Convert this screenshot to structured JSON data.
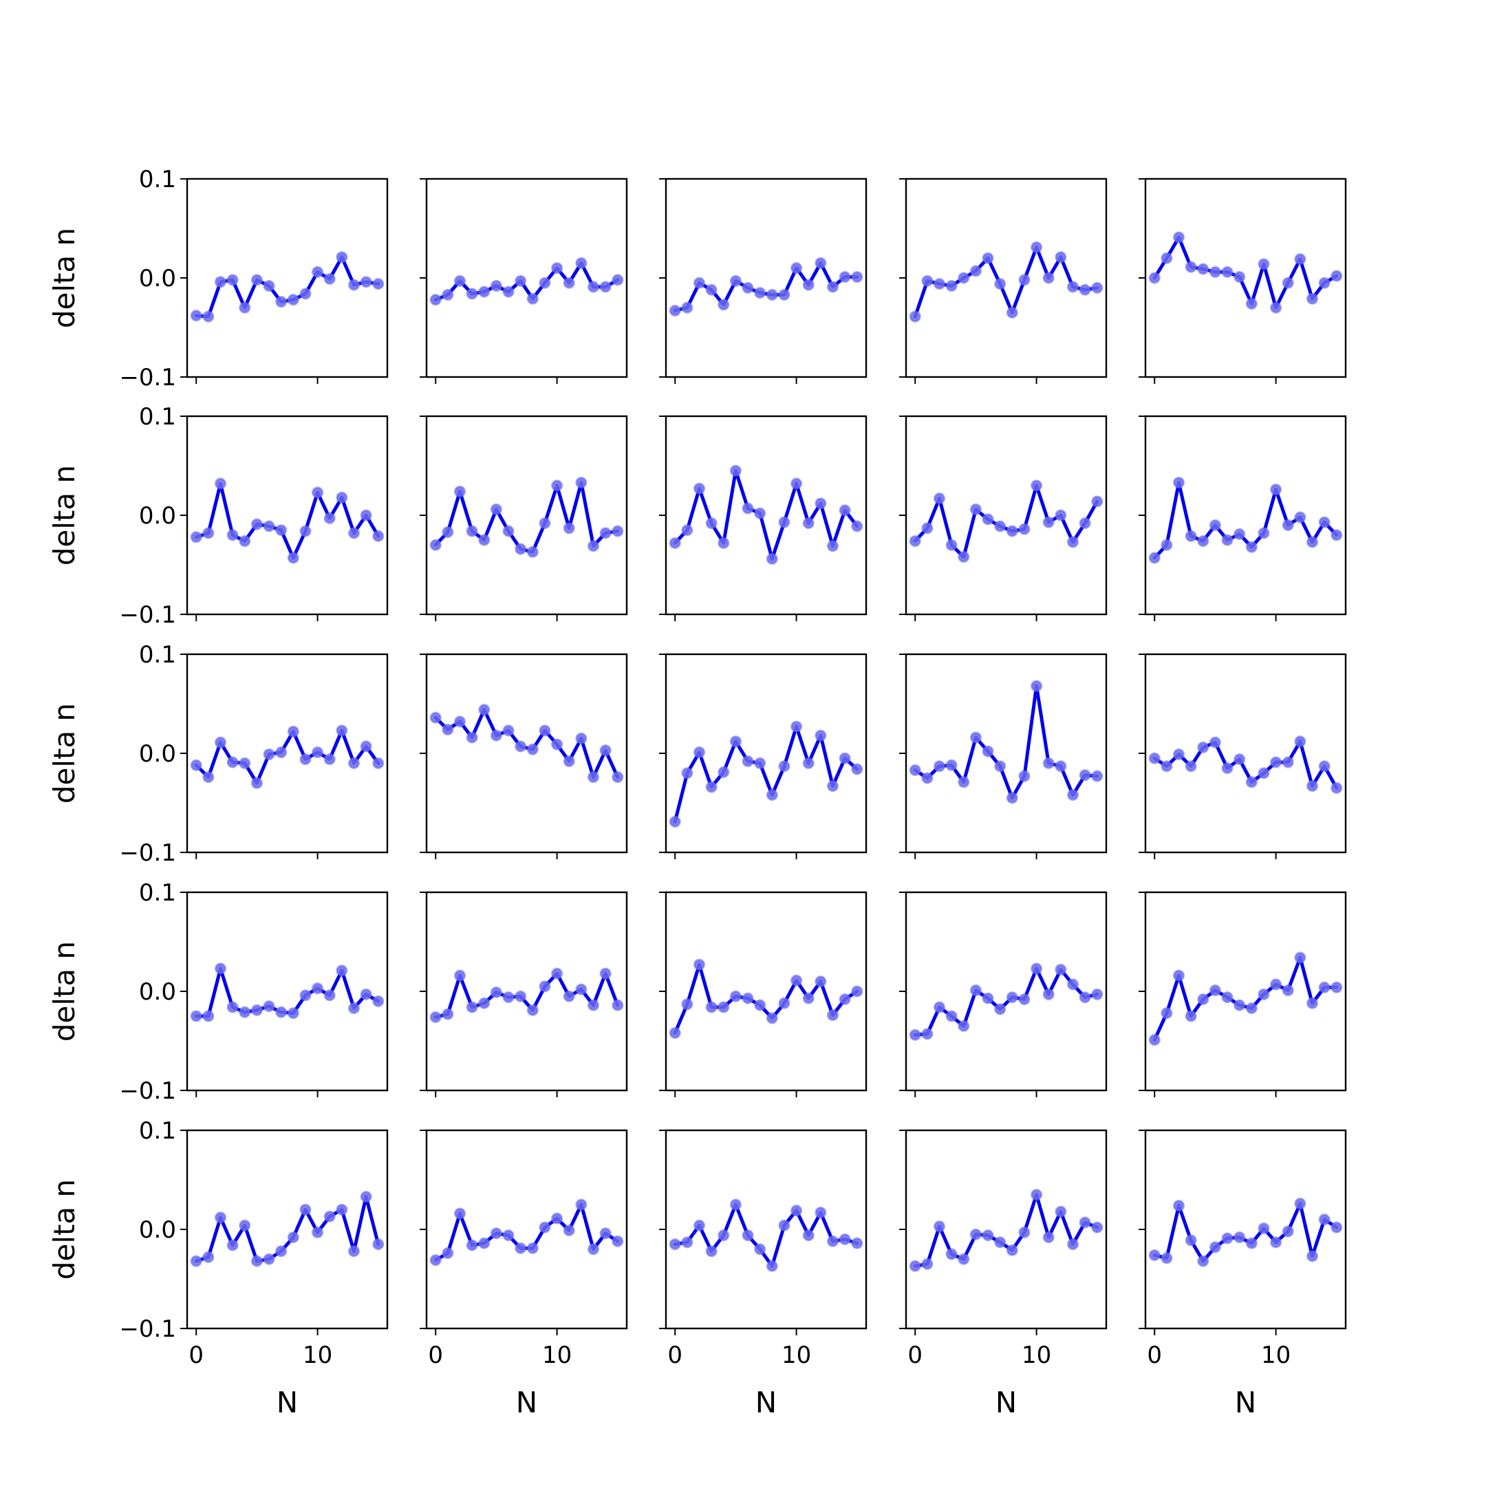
{
  "chart_data": {
    "type": "line",
    "layout": "5x5 small multiples",
    "xlabel": "N",
    "ylabel": "delta n",
    "ylim": [
      -0.1,
      0.1
    ],
    "xlim": [
      -0.75,
      15.75
    ],
    "yticks": [
      -0.1,
      0.0,
      0.1
    ],
    "ytick_labels": [
      "−0.1",
      "0.0",
      "0.1"
    ],
    "xticks": [
      0,
      10
    ],
    "xtick_labels": [
      "0",
      "10"
    ],
    "grid": false,
    "legend": "none",
    "line_color": "#0000ee",
    "marker_color": "#6a6af0",
    "x": [
      0,
      1,
      2,
      3,
      4,
      5,
      6,
      7,
      8,
      9,
      10,
      11,
      12,
      13,
      14,
      15
    ],
    "panels": [
      {
        "row": 1,
        "col": 1,
        "y": [
          -0.038,
          -0.039,
          -0.004,
          -0.002,
          -0.03,
          -0.002,
          -0.008,
          -0.024,
          -0.022,
          -0.016,
          0.006,
          -0.001,
          0.021,
          -0.007,
          -0.004,
          -0.006
        ]
      },
      {
        "row": 1,
        "col": 2,
        "y": [
          -0.022,
          -0.017,
          -0.003,
          -0.016,
          -0.014,
          -0.008,
          -0.014,
          -0.003,
          -0.021,
          -0.005,
          0.01,
          -0.005,
          0.015,
          -0.009,
          -0.009,
          -0.002
        ]
      },
      {
        "row": 1,
        "col": 3,
        "y": [
          -0.033,
          -0.03,
          -0.005,
          -0.012,
          -0.027,
          -0.003,
          -0.01,
          -0.015,
          -0.017,
          -0.017,
          0.01,
          -0.007,
          0.015,
          -0.009,
          0.001,
          0.001
        ]
      },
      {
        "row": 1,
        "col": 4,
        "y": [
          -0.039,
          -0.003,
          -0.006,
          -0.008,
          0.0,
          0.007,
          0.02,
          -0.006,
          -0.035,
          -0.002,
          0.031,
          0.0,
          0.021,
          -0.009,
          -0.012,
          -0.01
        ]
      },
      {
        "row": 1,
        "col": 5,
        "y": [
          0.0,
          0.02,
          0.041,
          0.011,
          0.009,
          0.006,
          0.006,
          0.001,
          -0.026,
          0.014,
          -0.03,
          -0.005,
          0.019,
          -0.021,
          -0.005,
          0.002
        ]
      },
      {
        "row": 2,
        "col": 1,
        "y": [
          -0.022,
          -0.018,
          0.032,
          -0.02,
          -0.026,
          -0.009,
          -0.011,
          -0.015,
          -0.043,
          -0.016,
          0.023,
          -0.003,
          0.018,
          -0.018,
          0.0,
          -0.021
        ]
      },
      {
        "row": 2,
        "col": 2,
        "y": [
          -0.03,
          -0.017,
          0.024,
          -0.016,
          -0.025,
          0.006,
          -0.016,
          -0.034,
          -0.037,
          -0.008,
          0.03,
          -0.013,
          0.033,
          -0.031,
          -0.018,
          -0.016
        ]
      },
      {
        "row": 2,
        "col": 3,
        "y": [
          -0.028,
          -0.015,
          0.027,
          -0.008,
          -0.028,
          0.045,
          0.007,
          0.002,
          -0.044,
          -0.007,
          0.032,
          -0.008,
          0.012,
          -0.031,
          0.005,
          -0.011
        ]
      },
      {
        "row": 2,
        "col": 4,
        "y": [
          -0.026,
          -0.013,
          0.017,
          -0.03,
          -0.042,
          0.006,
          -0.004,
          -0.011,
          -0.016,
          -0.014,
          0.03,
          -0.007,
          0.0,
          -0.027,
          -0.008,
          0.014
        ]
      },
      {
        "row": 2,
        "col": 5,
        "y": [
          -0.043,
          -0.03,
          0.033,
          -0.021,
          -0.026,
          -0.01,
          -0.025,
          -0.019,
          -0.032,
          -0.018,
          0.026,
          -0.01,
          -0.002,
          -0.027,
          -0.007,
          -0.02
        ]
      },
      {
        "row": 3,
        "col": 1,
        "y": [
          -0.012,
          -0.024,
          0.011,
          -0.009,
          -0.01,
          -0.03,
          -0.001,
          0.001,
          0.022,
          -0.006,
          0.001,
          -0.006,
          0.023,
          -0.01,
          0.007,
          -0.01
        ]
      },
      {
        "row": 3,
        "col": 2,
        "y": [
          0.036,
          0.024,
          0.032,
          0.016,
          0.044,
          0.018,
          0.023,
          0.007,
          0.004,
          0.023,
          0.009,
          -0.008,
          0.015,
          -0.024,
          0.003,
          -0.024
        ]
      },
      {
        "row": 3,
        "col": 3,
        "y": [
          -0.069,
          -0.02,
          0.001,
          -0.034,
          -0.019,
          0.012,
          -0.008,
          -0.01,
          -0.042,
          -0.013,
          0.027,
          -0.01,
          0.018,
          -0.033,
          -0.005,
          -0.016
        ]
      },
      {
        "row": 3,
        "col": 4,
        "y": [
          -0.017,
          -0.025,
          -0.013,
          -0.012,
          -0.029,
          0.016,
          0.002,
          -0.013,
          -0.045,
          -0.023,
          0.068,
          -0.01,
          -0.013,
          -0.042,
          -0.022,
          -0.023
        ]
      },
      {
        "row": 3,
        "col": 5,
        "y": [
          -0.005,
          -0.013,
          -0.001,
          -0.013,
          0.006,
          0.011,
          -0.015,
          -0.006,
          -0.029,
          -0.02,
          -0.009,
          -0.009,
          0.012,
          -0.033,
          -0.013,
          -0.035
        ]
      },
      {
        "row": 4,
        "col": 1,
        "y": [
          -0.025,
          -0.025,
          0.023,
          -0.016,
          -0.021,
          -0.019,
          -0.015,
          -0.021,
          -0.022,
          -0.004,
          0.003,
          -0.004,
          0.021,
          -0.017,
          -0.003,
          -0.01
        ]
      },
      {
        "row": 4,
        "col": 2,
        "y": [
          -0.026,
          -0.023,
          0.016,
          -0.016,
          -0.012,
          -0.001,
          -0.006,
          -0.005,
          -0.019,
          0.005,
          0.018,
          -0.005,
          0.002,
          -0.014,
          0.018,
          -0.014
        ]
      },
      {
        "row": 4,
        "col": 3,
        "y": [
          -0.042,
          -0.013,
          0.027,
          -0.016,
          -0.016,
          -0.005,
          -0.007,
          -0.014,
          -0.027,
          -0.012,
          0.011,
          -0.007,
          0.01,
          -0.024,
          -0.008,
          0.0
        ]
      },
      {
        "row": 4,
        "col": 4,
        "y": [
          -0.044,
          -0.043,
          -0.016,
          -0.025,
          -0.035,
          0.001,
          -0.007,
          -0.018,
          -0.006,
          -0.008,
          0.023,
          -0.003,
          0.022,
          0.007,
          -0.006,
          -0.003
        ]
      },
      {
        "row": 4,
        "col": 5,
        "y": [
          -0.049,
          -0.022,
          0.016,
          -0.025,
          -0.008,
          0.001,
          -0.006,
          -0.014,
          -0.017,
          -0.003,
          0.007,
          0.001,
          0.034,
          -0.012,
          0.004,
          0.004
        ]
      },
      {
        "row": 5,
        "col": 1,
        "y": [
          -0.032,
          -0.028,
          0.012,
          -0.016,
          0.004,
          -0.032,
          -0.03,
          -0.022,
          -0.008,
          0.02,
          -0.003,
          0.013,
          0.02,
          -0.022,
          0.033,
          -0.015
        ]
      },
      {
        "row": 5,
        "col": 2,
        "y": [
          -0.031,
          -0.024,
          0.016,
          -0.016,
          -0.014,
          -0.004,
          -0.006,
          -0.019,
          -0.019,
          0.002,
          0.011,
          -0.001,
          0.025,
          -0.02,
          -0.004,
          -0.012
        ]
      },
      {
        "row": 5,
        "col": 3,
        "y": [
          -0.015,
          -0.013,
          0.004,
          -0.022,
          -0.006,
          0.025,
          -0.006,
          -0.02,
          -0.037,
          0.004,
          0.019,
          -0.006,
          0.017,
          -0.012,
          -0.01,
          -0.014
        ]
      },
      {
        "row": 5,
        "col": 4,
        "y": [
          -0.037,
          -0.035,
          0.003,
          -0.025,
          -0.03,
          -0.005,
          -0.006,
          -0.013,
          -0.021,
          -0.003,
          0.035,
          -0.008,
          0.018,
          -0.015,
          0.007,
          0.002
        ]
      },
      {
        "row": 5,
        "col": 5,
        "y": [
          -0.026,
          -0.029,
          0.024,
          -0.011,
          -0.032,
          -0.018,
          -0.009,
          -0.008,
          -0.014,
          0.001,
          -0.013,
          -0.002,
          0.026,
          -0.027,
          0.01,
          0.002
        ]
      }
    ]
  }
}
